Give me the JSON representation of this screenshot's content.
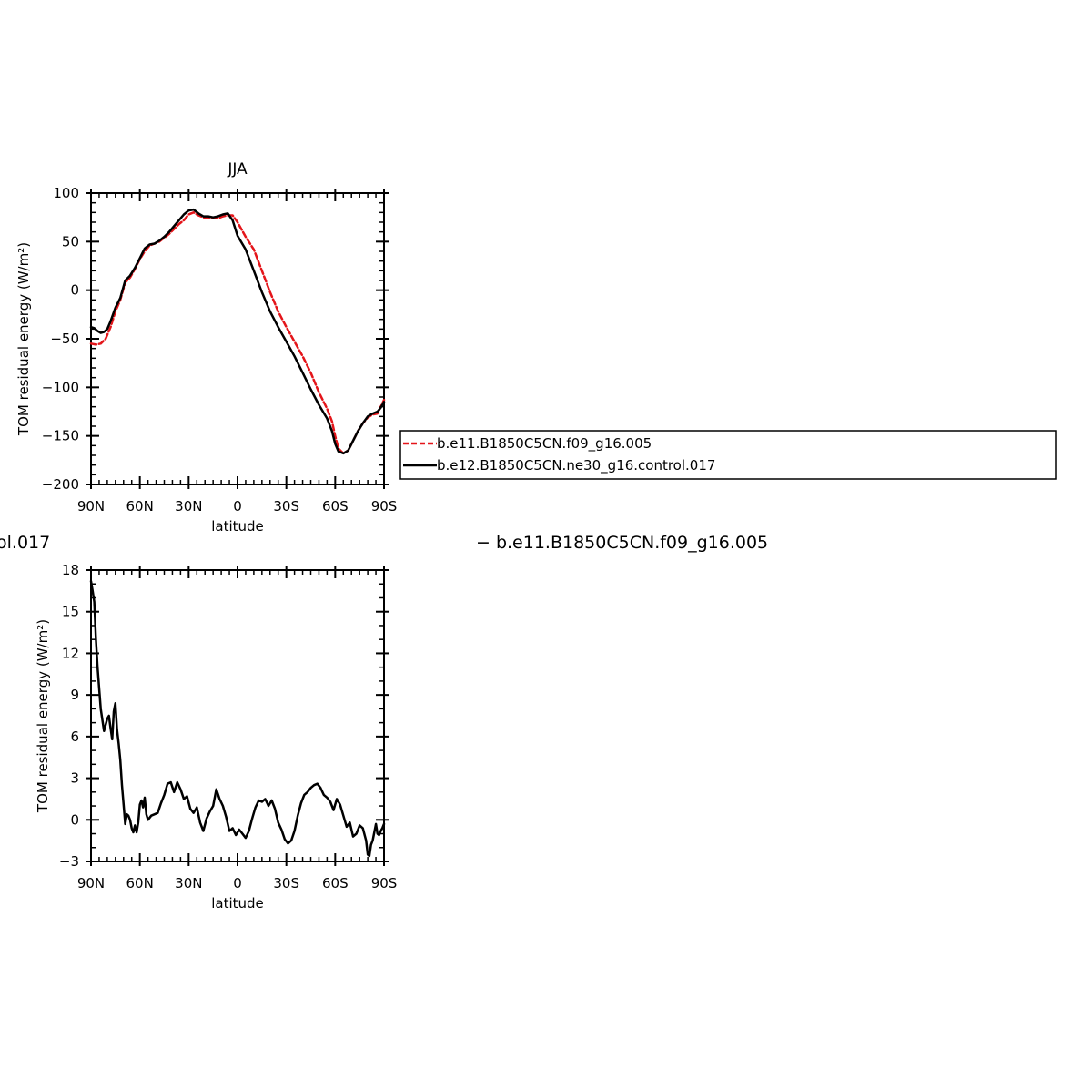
{
  "chart_data": [
    {
      "type": "line",
      "title": "JJA",
      "xlabel": "latitude",
      "ylabel": "TOM residual energy (W/m²)",
      "xlim": [
        90,
        -90
      ],
      "ylim": [
        -200,
        100
      ],
      "xticks": [
        {
          "value": 90,
          "label": "90N"
        },
        {
          "value": 60,
          "label": "60N"
        },
        {
          "value": 30,
          "label": "30N"
        },
        {
          "value": 0,
          "label": "0"
        },
        {
          "value": -30,
          "label": "30S"
        },
        {
          "value": -60,
          "label": "60S"
        },
        {
          "value": -90,
          "label": "90S"
        }
      ],
      "yticks": [
        {
          "value": 100,
          "label": "100"
        },
        {
          "value": 50,
          "label": "50"
        },
        {
          "value": 0,
          "label": "0"
        },
        {
          "value": -50,
          "label": "−50"
        },
        {
          "value": -100,
          "label": "−100"
        },
        {
          "value": -150,
          "label": "−150"
        },
        {
          "value": -200,
          "label": "−200"
        }
      ],
      "legend": "right",
      "series": [
        {
          "name": "b.e11.B1850C5CN.f09_g16.005",
          "color": "#e4151a",
          "dash": "dashed",
          "x": [
            90,
            87,
            84,
            81,
            78,
            75,
            72,
            69,
            66,
            63,
            60,
            57,
            54,
            51,
            48,
            45,
            42,
            39,
            36,
            33,
            30,
            27,
            24,
            21,
            18,
            15,
            12,
            9,
            6,
            3,
            0,
            -5,
            -10,
            -15,
            -20,
            -25,
            -30,
            -35,
            -40,
            -45,
            -50,
            -55,
            -58,
            -60,
            -62,
            -65,
            -68,
            -71,
            -74,
            -77,
            -80,
            -83,
            -86,
            -88,
            -90
          ],
          "y": [
            -55,
            -56,
            -55,
            -50,
            -38,
            -22,
            -10,
            8,
            13,
            22,
            32,
            40,
            46,
            48,
            50,
            54,
            58,
            63,
            68,
            72,
            78,
            80,
            77,
            75,
            75,
            74,
            74,
            76,
            77,
            77,
            70,
            55,
            42,
            20,
            -2,
            -22,
            -38,
            -53,
            -68,
            -85,
            -105,
            -122,
            -135,
            -150,
            -163,
            -168,
            -165,
            -155,
            -145,
            -137,
            -131,
            -128,
            -127,
            -120,
            -113
          ]
        },
        {
          "name": "b.e12.B1850C5CN.ne30_g16.control.017",
          "color": "#000000",
          "dash": "solid",
          "x": [
            90,
            88,
            86,
            84,
            82,
            80,
            78,
            75,
            72,
            69,
            66,
            63,
            60,
            57,
            54,
            51,
            48,
            45,
            42,
            39,
            36,
            33,
            30,
            27,
            24,
            21,
            18,
            15,
            12,
            9,
            6,
            3,
            0,
            -5,
            -10,
            -15,
            -20,
            -25,
            -30,
            -35,
            -40,
            -45,
            -50,
            -55,
            -58,
            -60,
            -62,
            -65,
            -68,
            -71,
            -74,
            -77,
            -80,
            -83,
            -86,
            -88,
            -90
          ],
          "y": [
            -38,
            -39,
            -42,
            -44,
            -43,
            -40,
            -32,
            -18,
            -8,
            10,
            15,
            23,
            33,
            43,
            47,
            48,
            51,
            55,
            60,
            66,
            72,
            78,
            82,
            83,
            79,
            76,
            76,
            75,
            76,
            78,
            79,
            72,
            56,
            42,
            20,
            -2,
            -22,
            -38,
            -53,
            -68,
            -85,
            -102,
            -118,
            -132,
            -145,
            -158,
            -166,
            -168,
            -165,
            -155,
            -145,
            -137,
            -130,
            -127,
            -125,
            -121,
            -115
          ]
        }
      ]
    },
    {
      "type": "line",
      "title": "",
      "xlabel": "latitude",
      "ylabel": "TOM residual energy (W/m²)",
      "xlim": [
        90,
        -90
      ],
      "ylim": [
        -3,
        18
      ],
      "xticks": [
        {
          "value": 90,
          "label": "90N"
        },
        {
          "value": 60,
          "label": "60N"
        },
        {
          "value": 30,
          "label": "30N"
        },
        {
          "value": 0,
          "label": "0"
        },
        {
          "value": -30,
          "label": "30S"
        },
        {
          "value": -60,
          "label": "60S"
        },
        {
          "value": -90,
          "label": "90S"
        }
      ],
      "yticks": [
        {
          "value": 18,
          "label": "18"
        },
        {
          "value": 15,
          "label": "15"
        },
        {
          "value": 12,
          "label": "12"
        },
        {
          "value": 9,
          "label": "9"
        },
        {
          "value": 6,
          "label": "6"
        },
        {
          "value": 3,
          "label": "3"
        },
        {
          "value": 0,
          "label": "0"
        },
        {
          "value": -3,
          "label": "−3"
        }
      ],
      "partial_title_left": "ol.017",
      "partial_title_right": "− b.e11.B1850C5CN.f09_g16.005",
      "series": [
        {
          "color": "#000000",
          "dash": "solid",
          "x": [
            90,
            89,
            88,
            87,
            86,
            84,
            82,
            80,
            79,
            78,
            77,
            76,
            75,
            74,
            73,
            72,
            71,
            70,
            69,
            68,
            67,
            66,
            65,
            64,
            63,
            62,
            61,
            60,
            59,
            58,
            57,
            56,
            55,
            53,
            51,
            49,
            47,
            45,
            43,
            41,
            39,
            37,
            35,
            33,
            31,
            29,
            27,
            25,
            23,
            21,
            19,
            17,
            15,
            13,
            11,
            9,
            7,
            5,
            3,
            1,
            -1,
            -3,
            -5,
            -7,
            -9,
            -11,
            -13,
            -15,
            -17,
            -19,
            -21,
            -23,
            -25,
            -27,
            -29,
            -31,
            -33,
            -35,
            -37,
            -39,
            -41,
            -43,
            -45,
            -47,
            -49,
            -51,
            -53,
            -55,
            -57,
            -59,
            -61,
            -63,
            -65,
            -67,
            -69,
            -71,
            -73,
            -75,
            -77,
            -79,
            -80,
            -81,
            -82,
            -83,
            -84,
            -85,
            -86,
            -87,
            -88,
            -89,
            -90
          ],
          "y": [
            17.2,
            16.5,
            15.7,
            13.0,
            11.0,
            8.0,
            6.4,
            7.3,
            7.5,
            6.6,
            5.8,
            7.8,
            8.4,
            6.5,
            5.5,
            4.3,
            2.5,
            1.1,
            -0.3,
            0.4,
            0.3,
            0.0,
            -0.6,
            -0.9,
            -0.4,
            -0.9,
            -0.2,
            1.1,
            1.4,
            0.9,
            1.6,
            0.4,
            0.0,
            0.3,
            0.4,
            0.5,
            1.2,
            1.8,
            2.6,
            2.7,
            2.0,
            2.7,
            2.2,
            1.5,
            1.7,
            0.8,
            0.5,
            0.9,
            -0.2,
            -0.8,
            0.1,
            0.6,
            1.0,
            2.2,
            1.5,
            1.0,
            0.2,
            -0.8,
            -0.6,
            -1.1,
            -0.7,
            -1.0,
            -1.3,
            -0.8,
            0.1,
            0.9,
            1.4,
            1.3,
            1.5,
            1.0,
            1.4,
            0.8,
            -0.2,
            -0.7,
            -1.4,
            -1.7,
            -1.5,
            -0.8,
            0.3,
            1.2,
            1.8,
            2.0,
            2.3,
            2.5,
            2.6,
            2.3,
            1.8,
            1.6,
            1.3,
            0.7,
            1.5,
            1.1,
            0.3,
            -0.5,
            -0.2,
            -1.2,
            -1.0,
            -0.4,
            -0.6,
            -1.5,
            -2.5,
            -2.6,
            -1.8,
            -1.5,
            -0.9,
            -0.3,
            -1.0,
            -1.1,
            -0.8,
            -0.6,
            -0.3
          ]
        }
      ]
    }
  ]
}
